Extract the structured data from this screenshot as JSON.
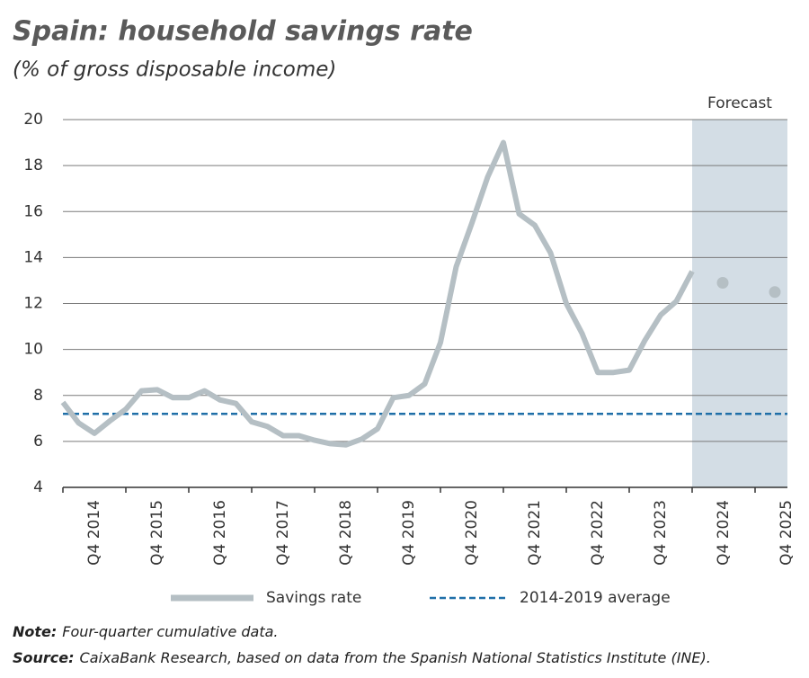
{
  "chart_data": {
    "type": "line",
    "title": "Spain: household savings rate",
    "subtitle": "(% of gross disposable income)",
    "categories": [
      null,
      null,
      "Q4 2014",
      null,
      null,
      null,
      "Q4 2015",
      null,
      null,
      null,
      "Q4 2016",
      null,
      null,
      null,
      "Q4 2017",
      null,
      null,
      null,
      "Q4 2018",
      null,
      null,
      null,
      "Q4 2019",
      null,
      null,
      null,
      "Q4 2020",
      null,
      null,
      null,
      "Q4 2021",
      null,
      null,
      null,
      "Q4 2022",
      null,
      null,
      null,
      "Q4 2023",
      null,
      null,
      null,
      "Q4 2024",
      null,
      null,
      null,
      "Q4 2025"
    ],
    "series": [
      {
        "name": "Savings rate",
        "color": "#b5bfc4",
        "values": [
          7.7,
          6.8,
          6.35,
          6.9,
          7.4,
          8.2,
          8.25,
          7.9,
          7.9,
          8.2,
          7.8,
          7.65,
          6.85,
          6.65,
          6.25,
          6.25,
          6.05,
          5.9,
          5.85,
          6.1,
          6.55,
          7.9,
          8.0,
          8.5,
          10.3,
          13.6,
          15.5,
          17.5,
          19.0,
          15.9,
          15.4,
          14.2,
          12.0,
          10.7,
          9.0,
          9.0,
          9.1,
          10.4,
          11.5,
          12.1,
          13.4,
          null,
          null,
          null,
          null,
          null,
          null
        ]
      },
      {
        "name": "Forecast",
        "color": "#b5bfc4",
        "values": [
          null,
          null,
          null,
          null,
          null,
          null,
          null,
          null,
          null,
          null,
          null,
          null,
          null,
          null,
          null,
          null,
          null,
          null,
          null,
          null,
          null,
          null,
          null,
          null,
          null,
          null,
          null,
          null,
          null,
          null,
          null,
          null,
          null,
          null,
          null,
          null,
          null,
          null,
          null,
          null,
          null,
          null,
          12.9,
          null,
          null,
          null,
          12.5
        ]
      }
    ],
    "average": {
      "name": "2014-2019 average",
      "color": "#1f6fa8",
      "value": 7.2
    },
    "ylim": [
      4,
      20
    ],
    "yticks": [
      4,
      6,
      8,
      10,
      12,
      14,
      16,
      18,
      20
    ],
    "grid": true,
    "notes": [
      {
        "label": "Note:",
        "text": "Four-quarter cumulative data."
      },
      {
        "label": "Source:",
        "text": "CaixaBank Research, based on data from the Spanish National Statistics Institute (INE)."
      }
    ]
  }
}
